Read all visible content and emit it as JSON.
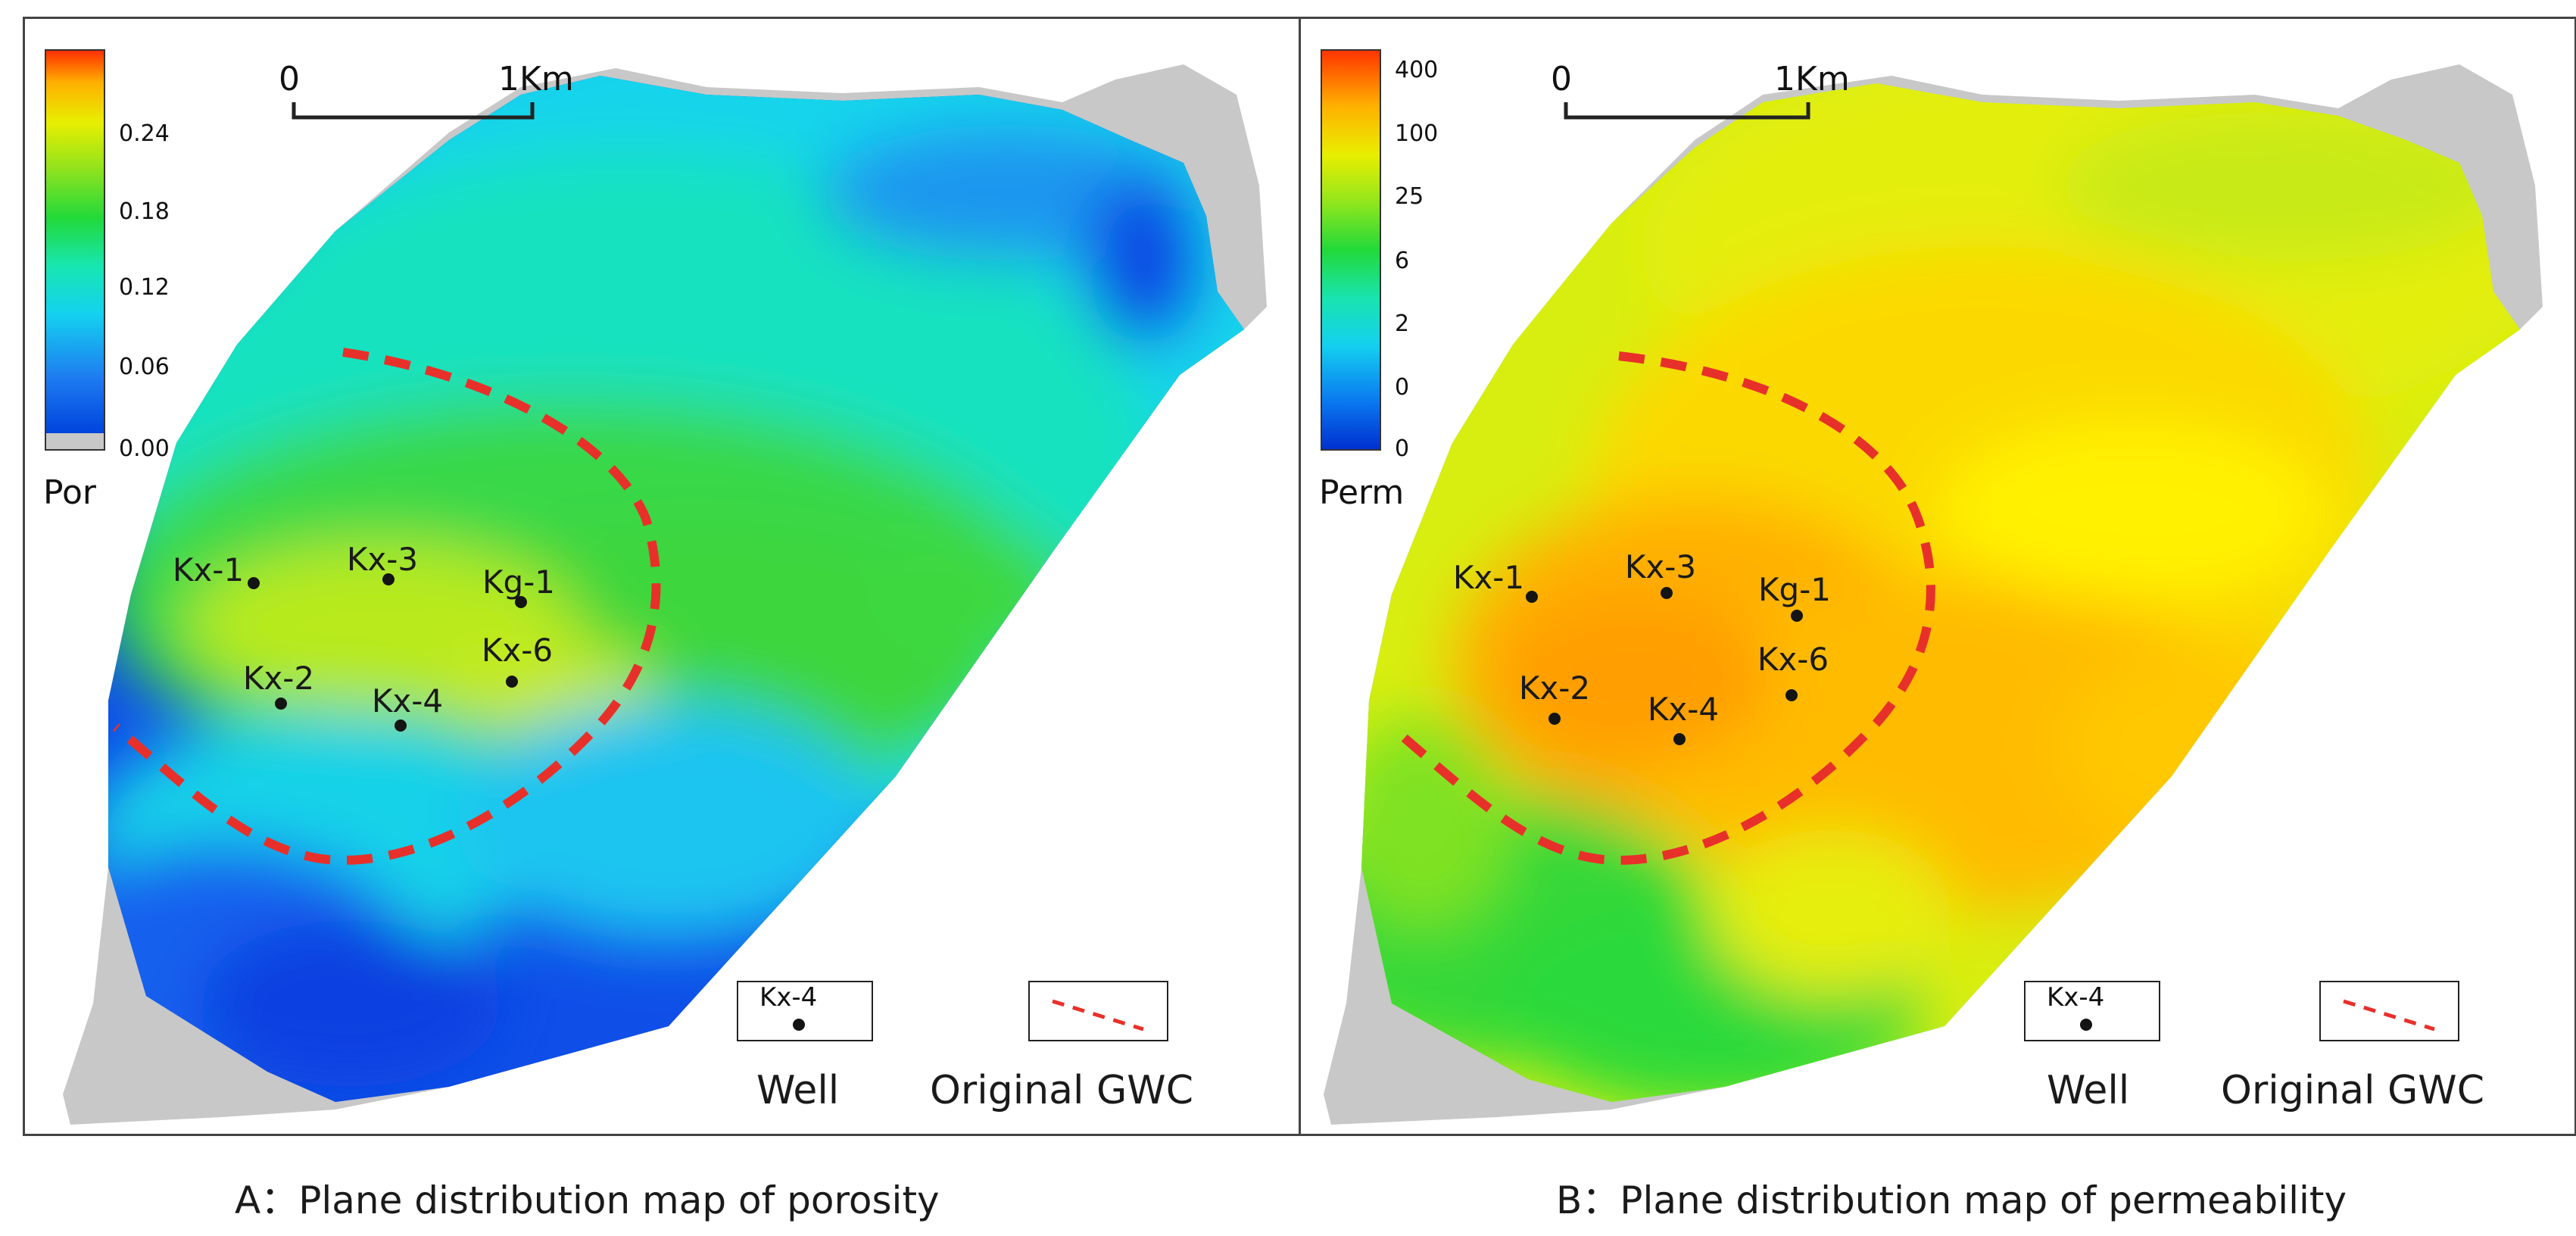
{
  "panels": {
    "a": {
      "colorbar": {
        "ticks": [
          "0.24",
          "0.18",
          "0.12",
          "0.06",
          "0.00"
        ],
        "label": "Por"
      },
      "scale": {
        "start": "0",
        "end": "1Km"
      },
      "wells": {
        "kx1": "Kx-1",
        "kx3": "Kx-3",
        "kg1": "Kg-1",
        "kx6": "Kx-6",
        "kx2": "Kx-2",
        "kx4": "Kx-4"
      },
      "legend": {
        "sample_well": "Kx-4",
        "well_label": "Well",
        "gwc_label": "Original GWC"
      },
      "caption": "A：Plane distribution map  of porosity"
    },
    "b": {
      "colorbar": {
        "ticks": [
          "400",
          "100",
          "25",
          "6",
          "2",
          "0",
          "0"
        ],
        "label": "Perm"
      },
      "scale": {
        "start": "0",
        "end": "1Km"
      },
      "wells": {
        "kx1": "Kx-1",
        "kx3": "Kx-3",
        "kg1": "Kg-1",
        "kx6": "Kx-6",
        "kx2": "Kx-2",
        "kx4": "Kx-4"
      },
      "legend": {
        "sample_well": "Kx-4",
        "well_label": "Well",
        "gwc_label": "Original GWC"
      },
      "caption": "B：Plane distribution map  of permeability"
    }
  },
  "colors": {
    "gwc_line": "#e8302a",
    "no_data": "#c8c8c8",
    "frame": "#444444"
  }
}
